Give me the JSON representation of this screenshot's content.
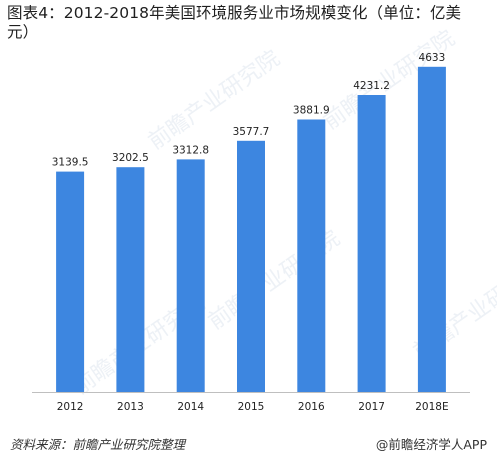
{
  "header": {
    "title": "图表4：2012-2018年美国环境服务业市场规模变化（单位：亿美元）"
  },
  "footer": {
    "source": "资料来源：前瞻产业研究院整理",
    "brand": "@前瞻经济学人APP"
  },
  "watermark": {
    "text": "前瞻产业研究院"
  },
  "chart_data": {
    "type": "bar",
    "title": "图表4：2012-2018年美国环境服务业市场规模变化（单位：亿美元）",
    "categories": [
      "2012",
      "2013",
      "2014",
      "2015",
      "2016",
      "2017",
      "2018E"
    ],
    "values": [
      3139.5,
      3202.5,
      3312.8,
      3577.7,
      3881.9,
      4231.2,
      4633
    ],
    "value_labels": [
      "3139.5",
      "3202.5",
      "3312.8",
      "3577.7",
      "3881.9",
      "4231.2",
      "4633"
    ],
    "ylim": [
      0,
      5000
    ],
    "bar_color": "#3d86e0",
    "axis_color": "#bfbfbf",
    "grid": false,
    "legend": "none"
  }
}
